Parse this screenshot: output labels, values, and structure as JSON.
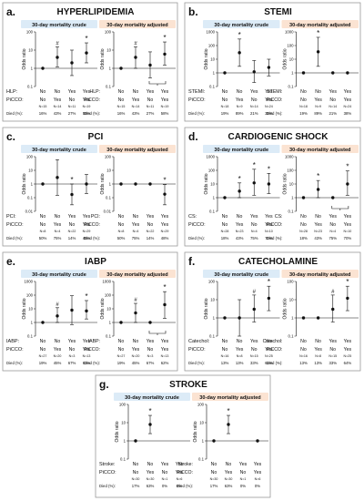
{
  "chart_data": [
    {
      "type": "scatter",
      "letter": "a.",
      "title": "HYPERLIPIDEMIA",
      "var_label": "HLP:",
      "ylabel": "Odds ratio",
      "yscale": "log",
      "ylim": [
        0.1,
        100
      ],
      "ytick_labels": [
        "0.1",
        "1",
        "10",
        "100"
      ],
      "row_labels": [
        "PiCCO:",
        "",
        "Died (%):"
      ],
      "var_values": [
        "No",
        "No",
        "Yes",
        "Yes"
      ],
      "picco_values": [
        "No",
        "Yes",
        "No",
        "Yes"
      ],
      "n_values": [
        "N=15",
        "N=14",
        "N=11",
        "N=19"
      ],
      "died_values": [
        "16%",
        "43%",
        "27%",
        "58%"
      ],
      "panels": [
        {
          "label": "30-day mortality crude",
          "bracket": false,
          "points": [
            {
              "y": 1,
              "lo": null,
              "hi": null,
              "mark": ""
            },
            {
              "y": 4,
              "lo": 1.2,
              "hi": 15,
              "mark": "#"
            },
            {
              "y": 2,
              "lo": 0.4,
              "hi": 10,
              "mark": ""
            },
            {
              "y": 7,
              "lo": 2,
              "hi": 25,
              "mark": "*"
            }
          ]
        },
        {
          "label": "30-day mortality adjusted",
          "bracket": true,
          "points": [
            {
              "y": 1,
              "lo": null,
              "hi": null,
              "mark": ""
            },
            {
              "y": 4,
              "lo": 1,
              "hi": 15,
              "mark": "#"
            },
            {
              "y": 1.5,
              "lo": 0.3,
              "hi": 8,
              "mark": ""
            },
            {
              "y": 6,
              "lo": 1.5,
              "hi": 28,
              "mark": "*"
            }
          ]
        }
      ]
    },
    {
      "type": "scatter",
      "letter": "b.",
      "title": "STEMI",
      "var_label": "STEMI:",
      "ylabel": "Odds ratio",
      "yscale": "log",
      "ylim": [
        0.1,
        1000
      ],
      "ytick_labels": [
        "0.1",
        "1",
        "10",
        "100",
        "1000"
      ],
      "row_labels": [
        "PiCCO:",
        "",
        "Died (%):"
      ],
      "var_values": [
        "No",
        "No",
        "Yes",
        "Yes"
      ],
      "picco_values": [
        "No",
        "Yes",
        "No",
        "Yes"
      ],
      "n_values": [
        "N=18",
        "N=9",
        "N=14",
        "N=24"
      ],
      "died_values": [
        "19%",
        "89%",
        "21%",
        "38%"
      ],
      "panels": [
        {
          "label": "30-day mortality crude",
          "bracket": false,
          "points": [
            {
              "y": 1,
              "lo": null,
              "hi": null,
              "mark": ""
            },
            {
              "y": 30,
              "lo": 3,
              "hi": 300,
              "mark": "*"
            },
            {
              "y": 1.2,
              "lo": 0.2,
              "hi": 8,
              "mark": ""
            },
            {
              "y": 2.5,
              "lo": 0.6,
              "hi": 10,
              "mark": ""
            }
          ]
        },
        {
          "label": "30-day mortality adjusted",
          "bracket": false,
          "points": [
            {
              "y": 1,
              "lo": null,
              "hi": null,
              "mark": ""
            },
            {
              "y": 35,
              "lo": 3,
              "hi": 400,
              "mark": "*"
            },
            {
              "y": 1,
              "lo": null,
              "hi": null,
              "mark": ""
            },
            {
              "y": 1,
              "lo": null,
              "hi": null,
              "mark": ""
            }
          ]
        }
      ]
    },
    {
      "type": "scatter",
      "letter": "c.",
      "title": "PCI",
      "var_label": "PCI:",
      "ylabel": "Odds ratio",
      "yscale": "log",
      "ylim": [
        0.01,
        100
      ],
      "ytick_labels": [
        "0.01",
        "0.1",
        "1",
        "10",
        "100"
      ],
      "row_labels": [
        "PiCCO:",
        "",
        "Died (%):"
      ],
      "var_values": [
        "No",
        "No",
        "Yes",
        "Yes"
      ],
      "picco_values": [
        "No",
        "Yes",
        "No",
        "Yes"
      ],
      "n_values": [
        "N=8",
        "N=4",
        "N=22",
        "N=29"
      ],
      "died_values": [
        "50%",
        "75%",
        "14%",
        "48%"
      ],
      "panels": [
        {
          "label": "30-day mortality crude",
          "bracket": false,
          "points": [
            {
              "y": 1,
              "lo": null,
              "hi": null,
              "mark": ""
            },
            {
              "y": 3,
              "lo": 0.15,
              "hi": 60,
              "mark": ""
            },
            {
              "y": 0.17,
              "lo": 0.03,
              "hi": 1,
              "mark": "*"
            },
            {
              "y": 1,
              "lo": 0.2,
              "hi": 5,
              "mark": ""
            }
          ]
        },
        {
          "label": "30-day mortality adjusted",
          "bracket": false,
          "points": [
            {
              "y": 1,
              "lo": null,
              "hi": null,
              "mark": ""
            },
            {
              "y": 1,
              "lo": null,
              "hi": null,
              "mark": ""
            },
            {
              "y": 1,
              "lo": null,
              "hi": null,
              "mark": ""
            },
            {
              "y": 0.18,
              "lo": 0.03,
              "hi": 0.9,
              "mark": "*"
            }
          ]
        }
      ]
    },
    {
      "type": "scatter",
      "letter": "d.",
      "title": "CARDIOGENIC SHOCK",
      "var_label": "CS:",
      "ylabel": "Odds ratio",
      "yscale": "log",
      "ylim": [
        0.1,
        1000
      ],
      "ytick_labels": [
        "0.1",
        "1",
        "10",
        "100",
        "1000"
      ],
      "row_labels": [
        "PiCCO:",
        "",
        "Died (%):"
      ],
      "var_values": [
        "No",
        "No",
        "Yes",
        "Yes"
      ],
      "picco_values": [
        "No",
        "Yes",
        "No",
        "Yes"
      ],
      "n_values": [
        "N=28",
        "N=23",
        "N=4",
        "N=10"
      ],
      "died_values": [
        "18%",
        "43%",
        "75%",
        "70%"
      ],
      "panels": [
        {
          "label": "30-day mortality crude",
          "bracket": false,
          "points": [
            {
              "y": 1,
              "lo": null,
              "hi": null,
              "mark": ""
            },
            {
              "y": 3,
              "lo": 1,
              "hi": 12,
              "mark": "*"
            },
            {
              "y": 12,
              "lo": 1.5,
              "hi": 120,
              "mark": "*"
            },
            {
              "y": 10,
              "lo": 2,
              "hi": 60,
              "mark": "*"
            }
          ]
        },
        {
          "label": "30-day mortality adjusted",
          "bracket": true,
          "points": [
            {
              "y": 1,
              "lo": null,
              "hi": null,
              "mark": ""
            },
            {
              "y": 4,
              "lo": 1,
              "hi": 18,
              "mark": "*"
            },
            {
              "y": 1,
              "lo": null,
              "hi": null,
              "mark": ""
            },
            {
              "y": 10,
              "lo": 1.5,
              "hi": 90,
              "mark": "*"
            }
          ]
        }
      ]
    },
    {
      "type": "scatter",
      "letter": "e.",
      "title": "IABP",
      "var_label": "IABP:",
      "ylabel": "Odds ratio",
      "yscale": "log",
      "ylim": [
        0.1,
        1000
      ],
      "ytick_labels": [
        "0.1",
        "1",
        "10",
        "100",
        "1000"
      ],
      "row_labels": [
        "PiCCO:",
        "",
        "Died (%):"
      ],
      "var_values": [
        "No",
        "No",
        "Yes",
        "Yes"
      ],
      "picco_values": [
        "No",
        "Yes",
        "No",
        "Yes"
      ],
      "n_values": [
        "N=27",
        "N=20",
        "N=3",
        "N=13"
      ],
      "died_values": [
        "19%",
        "45%",
        "67%",
        "62%"
      ],
      "panels": [
        {
          "label": "30-day mortality crude",
          "bracket": false,
          "points": [
            {
              "y": 1,
              "lo": null,
              "hi": null,
              "mark": ""
            },
            {
              "y": 3,
              "lo": 1,
              "hi": 12,
              "mark": "#"
            },
            {
              "y": 8,
              "lo": 0.7,
              "hi": 90,
              "mark": ""
            },
            {
              "y": 7,
              "lo": 1.8,
              "hi": 40,
              "mark": "*"
            }
          ]
        },
        {
          "label": "30-day mortality adjusted",
          "bracket": true,
          "points": [
            {
              "y": 1,
              "lo": null,
              "hi": null,
              "mark": ""
            },
            {
              "y": 5,
              "lo": 1,
              "hi": 25,
              "mark": "#"
            },
            {
              "y": 1,
              "lo": null,
              "hi": null,
              "mark": ""
            },
            {
              "y": 20,
              "lo": 2,
              "hi": 180,
              "mark": "*"
            }
          ]
        }
      ]
    },
    {
      "type": "scatter",
      "letter": "f.",
      "title": "CATECHOLAMINE",
      "var_label": "Catechol:",
      "ylabel": "Odds ratio",
      "yscale": "log",
      "ylim": [
        0.1,
        100
      ],
      "ytick_labels": [
        "0.1",
        "1",
        "10",
        "100"
      ],
      "row_labels": [
        "PiCCO:",
        "",
        "Died (%):"
      ],
      "var_values": [
        "No",
        "No",
        "Yes",
        "Yes"
      ],
      "picco_values": [
        "No",
        "Yes",
        "No",
        "Yes"
      ],
      "n_values": [
        "N=16",
        "N=8",
        "N=15",
        "N=25"
      ],
      "died_values": [
        "13%",
        "13%",
        "33%",
        "64%"
      ],
      "panels": [
        {
          "label": "30-day mortality crude",
          "bracket": false,
          "points": [
            {
              "y": 1,
              "lo": null,
              "hi": null,
              "mark": ""
            },
            {
              "y": 1,
              "lo": 0.1,
              "hi": 10,
              "mark": ""
            },
            {
              "y": 3,
              "lo": 0.6,
              "hi": 18,
              "mark": "#"
            },
            {
              "y": 12,
              "lo": 2.5,
              "hi": 55,
              "mark": "*"
            }
          ]
        },
        {
          "label": "30-day mortality adjusted",
          "bracket": false,
          "points": [
            {
              "y": 1,
              "lo": null,
              "hi": null,
              "mark": ""
            },
            {
              "y": 1,
              "lo": null,
              "hi": null,
              "mark": ""
            },
            {
              "y": 3,
              "lo": 0.6,
              "hi": 18,
              "mark": "#"
            },
            {
              "y": 12,
              "lo": 2.5,
              "hi": 55,
              "mark": "*"
            }
          ]
        }
      ]
    },
    {
      "type": "scatter",
      "letter": "g.",
      "title": "STROKE",
      "var_label": "Stroke:",
      "ylabel": "Odds ratio",
      "yscale": "log",
      "ylim": [
        0.1,
        100
      ],
      "ytick_labels": [
        "0.1",
        "1",
        "10",
        "100"
      ],
      "row_labels": [
        "PiCCO:",
        "",
        "Died (%):"
      ],
      "var_values": [
        "No",
        "No",
        "Yes",
        "Yes"
      ],
      "picco_values": [
        "No",
        "Yes",
        "No",
        "Yes"
      ],
      "n_values": [
        "N=30",
        "N=30",
        "N=1",
        "N=6"
      ],
      "died_values": [
        "17%",
        "63%",
        "0%",
        "0%"
      ],
      "panels": [
        {
          "label": "30-day mortality crude",
          "bracket": false,
          "points": [
            {
              "y": 1,
              "lo": null,
              "hi": null,
              "mark": ""
            },
            {
              "y": 8,
              "lo": 2.5,
              "hi": 25,
              "mark": "*"
            },
            {
              "y": null,
              "lo": null,
              "hi": null,
              "mark": ""
            },
            {
              "y": null,
              "lo": null,
              "hi": null,
              "mark": ""
            }
          ]
        },
        {
          "label": "30-day mortality adjusted",
          "bracket": false,
          "points": [
            {
              "y": 1,
              "lo": null,
              "hi": null,
              "mark": ""
            },
            {
              "y": 8,
              "lo": 2.5,
              "hi": 25,
              "mark": "*"
            },
            {
              "y": null,
              "lo": null,
              "hi": null,
              "mark": ""
            },
            {
              "y": 1,
              "lo": null,
              "hi": null,
              "mark": ""
            }
          ]
        }
      ]
    }
  ],
  "colors": {
    "crude_fill": "#dcebf7",
    "adjusted_fill": "#fbe3d2",
    "frame": "#9a9a9a",
    "ink": "#111111"
  }
}
